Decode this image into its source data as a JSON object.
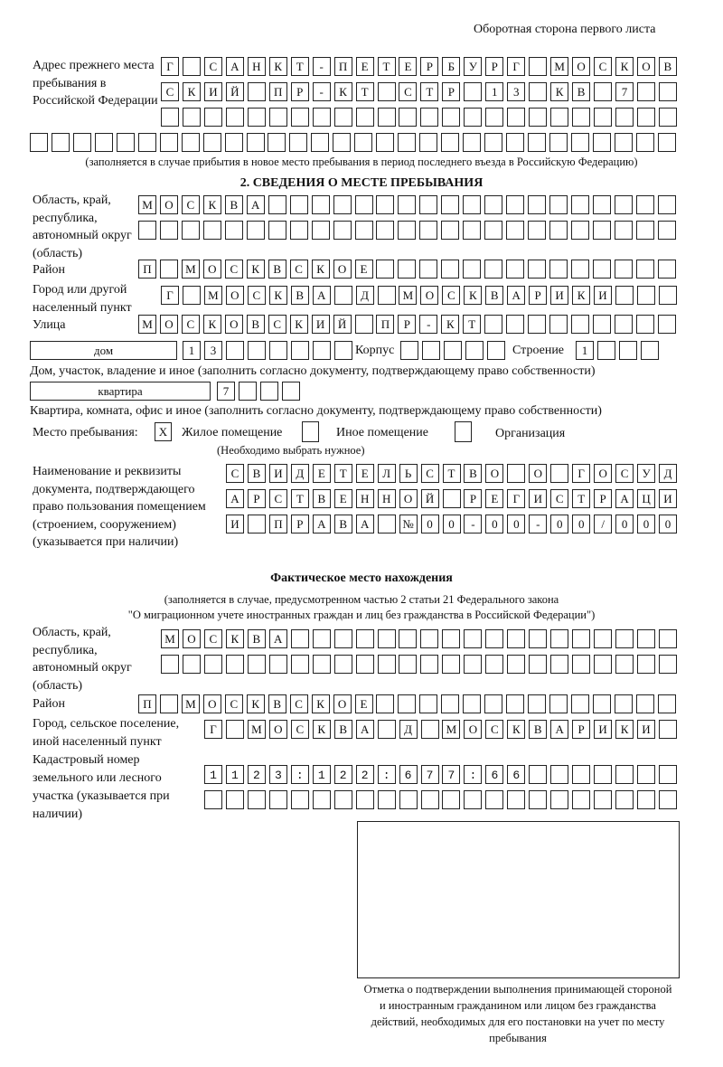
{
  "header": "Оборотная сторона первого листа",
  "previous_address": {
    "label": "Адрес прежнего места пребывания в Российской Федерации",
    "rows": [
      "Г САНКТ-ПЕТЕРБУРГ МОСКОВ",
      "СКИЙ ПР-КТ СТР 13 КВ 7",
      "",
      ""
    ],
    "note": "(заполняется в случае прибытия в новое место пребывания в период последнего въезда в Российскую Федерацию)"
  },
  "section2": {
    "title": "2. СВЕДЕНИЯ О МЕСТЕ ПРЕБЫВАНИЯ",
    "region_label": "Область, край, республика, автономный округ (область)",
    "region_rows": [
      "МОСКВА",
      ""
    ],
    "district_label": "Район",
    "district": "П МОСКВСКОЕ",
    "city_label": "Город или другой населенный пункт",
    "city": "Г МОСКВА Д МОСКВАРИКИ",
    "street_label": "Улица",
    "street": "МОСКОВСКИЙ ПР-КТ",
    "house_type": "дом",
    "house": "13",
    "korpus_label": "Корпус",
    "korpus": "",
    "building_label": "Строение",
    "building": "1",
    "house_note": "Дом, участок, владение и иное (заполнить согласно документу, подтверждающему право собственности)",
    "apt_type": "квартира",
    "apt": "7",
    "apt_note": "Квартира, комната, офис и иное (заполнить согласно документу, подтверждающему право собственности)",
    "stay_label": "Место пребывания:",
    "stay_options": [
      {
        "label": "Жилое помещение",
        "mark": "X"
      },
      {
        "label": "Иное помещение",
        "mark": ""
      },
      {
        "label": "Организация",
        "mark": ""
      }
    ],
    "stay_note": "(Необходимо выбрать нужное)",
    "doc_label": "Наименование и реквизиты документа, подтверждающего право пользования помещением (строением, сооружением) (указывается при наличии)",
    "doc_rows": [
      "СВИДЕТЕЛЬСТВО О ГОСУД",
      "АРСТВЕННОЙ РЕГИСТРАЦИ",
      "И ПРАВА №00-00-00/000"
    ]
  },
  "actual": {
    "title": "Фактическое место нахождения",
    "note1": "(заполняется в случае, предусмотренном частью 2 статьи 21 Федерального закона",
    "note2": "\"О миграционном учете иностранных граждан и лиц без гражданства в Российской Федерации\")",
    "region_label": "Область, край, республика, автономный округ (область)",
    "region_rows": [
      "МОСКВА",
      ""
    ],
    "district_label": "Район",
    "district": "П МОСКВСКОЕ",
    "city_label": "Город, сельское поселение, иной населенный пункт",
    "city": "Г МОСКВА Д МОСКВАРИКИ",
    "cadastral_label": "Кадастровый номер земельного или лесного участка (указывается при наличии)",
    "cadastral_rows": [
      "1123:122:677:66",
      ""
    ]
  },
  "stamp_caption": "Отметка о подтверждении выполнения принимающей стороной и иностранным гражданином или лицом без гражданства действий, необходимых для его постановки на учет по месту пребывания"
}
